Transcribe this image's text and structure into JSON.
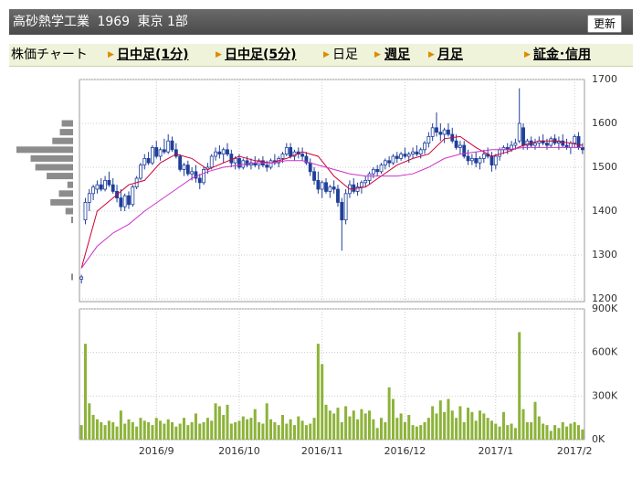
{
  "header": {
    "title": "高砂熱学工業",
    "code": "1969",
    "market": "東京 1部",
    "button": "更新"
  },
  "tabs": [
    "株価チャート",
    "日中足(1分)",
    "日中足(5分)",
    "日足",
    "週足",
    "月足",
    "証金･信用"
  ],
  "chart_data": {
    "type": "candlestick",
    "candle_color": "#1f3f99",
    "grid": true,
    "ohlc": [
      [
        1245,
        1255,
        1235,
        1250
      ],
      [
        1380,
        1430,
        1370,
        1420
      ],
      [
        1420,
        1450,
        1400,
        1440
      ],
      [
        1440,
        1460,
        1425,
        1455
      ],
      [
        1450,
        1470,
        1440,
        1460
      ],
      [
        1460,
        1475,
        1445,
        1450
      ],
      [
        1450,
        1480,
        1445,
        1470
      ],
      [
        1470,
        1490,
        1455,
        1460
      ],
      [
        1460,
        1475,
        1440,
        1445
      ],
      [
        1445,
        1460,
        1420,
        1430
      ],
      [
        1430,
        1450,
        1400,
        1410
      ],
      [
        1410,
        1440,
        1400,
        1435
      ],
      [
        1435,
        1445,
        1405,
        1415
      ],
      [
        1415,
        1460,
        1410,
        1455
      ],
      [
        1455,
        1480,
        1450,
        1475
      ],
      [
        1475,
        1510,
        1470,
        1505
      ],
      [
        1505,
        1530,
        1495,
        1520
      ],
      [
        1520,
        1535,
        1505,
        1510
      ],
      [
        1510,
        1550,
        1505,
        1545
      ],
      [
        1545,
        1560,
        1520,
        1525
      ],
      [
        1525,
        1545,
        1515,
        1540
      ],
      [
        1540,
        1565,
        1530,
        1535
      ],
      [
        1535,
        1575,
        1530,
        1560
      ],
      [
        1560,
        1570,
        1535,
        1540
      ],
      [
        1540,
        1555,
        1520,
        1525
      ],
      [
        1525,
        1530,
        1490,
        1495
      ],
      [
        1495,
        1510,
        1480,
        1505
      ],
      [
        1505,
        1515,
        1480,
        1485
      ],
      [
        1485,
        1500,
        1470,
        1490
      ],
      [
        1490,
        1505,
        1465,
        1475
      ],
      [
        1475,
        1485,
        1450,
        1465
      ],
      [
        1465,
        1500,
        1460,
        1495
      ],
      [
        1495,
        1510,
        1485,
        1500
      ],
      [
        1500,
        1530,
        1495,
        1525
      ],
      [
        1525,
        1545,
        1515,
        1535
      ],
      [
        1535,
        1550,
        1520,
        1530
      ],
      [
        1530,
        1545,
        1510,
        1540
      ],
      [
        1540,
        1555,
        1525,
        1530
      ],
      [
        1530,
        1540,
        1500,
        1510
      ],
      [
        1510,
        1525,
        1495,
        1520
      ],
      [
        1520,
        1530,
        1495,
        1500
      ],
      [
        1500,
        1520,
        1495,
        1515
      ],
      [
        1515,
        1525,
        1500,
        1505
      ],
      [
        1505,
        1520,
        1495,
        1510
      ],
      [
        1510,
        1525,
        1500,
        1505
      ],
      [
        1505,
        1520,
        1495,
        1515
      ],
      [
        1515,
        1525,
        1500,
        1505
      ],
      [
        1505,
        1515,
        1490,
        1500
      ],
      [
        1500,
        1520,
        1495,
        1515
      ],
      [
        1515,
        1530,
        1505,
        1510
      ],
      [
        1510,
        1525,
        1500,
        1520
      ],
      [
        1520,
        1535,
        1510,
        1530
      ],
      [
        1530,
        1555,
        1525,
        1545
      ],
      [
        1545,
        1555,
        1520,
        1525
      ],
      [
        1525,
        1540,
        1515,
        1535
      ],
      [
        1535,
        1545,
        1520,
        1530
      ],
      [
        1530,
        1545,
        1515,
        1525
      ],
      [
        1525,
        1535,
        1505,
        1510
      ],
      [
        1510,
        1520,
        1480,
        1490
      ],
      [
        1490,
        1500,
        1460,
        1470
      ],
      [
        1470,
        1490,
        1440,
        1450
      ],
      [
        1450,
        1470,
        1430,
        1465
      ],
      [
        1465,
        1475,
        1440,
        1445
      ],
      [
        1445,
        1460,
        1430,
        1455
      ],
      [
        1455,
        1470,
        1440,
        1450
      ],
      [
        1450,
        1460,
        1410,
        1420
      ],
      [
        1420,
        1430,
        1310,
        1380
      ],
      [
        1380,
        1450,
        1370,
        1440
      ],
      [
        1440,
        1470,
        1430,
        1460
      ],
      [
        1460,
        1475,
        1440,
        1445
      ],
      [
        1445,
        1465,
        1435,
        1455
      ],
      [
        1455,
        1470,
        1440,
        1465
      ],
      [
        1465,
        1480,
        1455,
        1470
      ],
      [
        1470,
        1490,
        1460,
        1485
      ],
      [
        1485,
        1500,
        1475,
        1495
      ],
      [
        1495,
        1505,
        1480,
        1490
      ],
      [
        1490,
        1510,
        1485,
        1505
      ],
      [
        1505,
        1520,
        1495,
        1515
      ],
      [
        1515,
        1525,
        1500,
        1510
      ],
      [
        1510,
        1530,
        1505,
        1525
      ],
      [
        1525,
        1535,
        1510,
        1520
      ],
      [
        1520,
        1535,
        1515,
        1530
      ],
      [
        1530,
        1545,
        1520,
        1525
      ],
      [
        1525,
        1535,
        1510,
        1530
      ],
      [
        1530,
        1545,
        1520,
        1535
      ],
      [
        1535,
        1550,
        1525,
        1530
      ],
      [
        1530,
        1545,
        1520,
        1540
      ],
      [
        1540,
        1560,
        1530,
        1555
      ],
      [
        1555,
        1580,
        1545,
        1570
      ],
      [
        1570,
        1600,
        1560,
        1590
      ],
      [
        1590,
        1625,
        1570,
        1580
      ],
      [
        1580,
        1600,
        1560,
        1575
      ],
      [
        1575,
        1590,
        1555,
        1585
      ],
      [
        1585,
        1600,
        1570,
        1575
      ],
      [
        1575,
        1590,
        1555,
        1560
      ],
      [
        1560,
        1575,
        1540,
        1545
      ],
      [
        1545,
        1560,
        1530,
        1550
      ],
      [
        1550,
        1560,
        1520,
        1525
      ],
      [
        1525,
        1540,
        1505,
        1515
      ],
      [
        1515,
        1530,
        1505,
        1520
      ],
      [
        1520,
        1535,
        1500,
        1510
      ],
      [
        1510,
        1525,
        1495,
        1520
      ],
      [
        1520,
        1540,
        1510,
        1530
      ],
      [
        1530,
        1545,
        1520,
        1525
      ],
      [
        1525,
        1535,
        1490,
        1505
      ],
      [
        1505,
        1530,
        1495,
        1525
      ],
      [
        1525,
        1545,
        1515,
        1540
      ],
      [
        1540,
        1550,
        1530,
        1545
      ],
      [
        1545,
        1555,
        1530,
        1540
      ],
      [
        1540,
        1560,
        1535,
        1550
      ],
      [
        1550,
        1565,
        1540,
        1555
      ],
      [
        1560,
        1680,
        1555,
        1600
      ],
      [
        1590,
        1600,
        1540,
        1550
      ],
      [
        1550,
        1565,
        1540,
        1560
      ],
      [
        1560,
        1570,
        1545,
        1550
      ],
      [
        1550,
        1565,
        1540,
        1555
      ],
      [
        1555,
        1570,
        1545,
        1560
      ],
      [
        1560,
        1575,
        1550,
        1555
      ],
      [
        1555,
        1565,
        1540,
        1550
      ],
      [
        1550,
        1570,
        1545,
        1565
      ],
      [
        1565,
        1575,
        1550,
        1555
      ],
      [
        1555,
        1570,
        1540,
        1560
      ],
      [
        1560,
        1575,
        1545,
        1550
      ],
      [
        1550,
        1565,
        1540,
        1545
      ],
      [
        1545,
        1560,
        1530,
        1555
      ],
      [
        1555,
        1575,
        1545,
        1570
      ],
      [
        1570,
        1580,
        1540,
        1545
      ],
      [
        1545,
        1555,
        1530,
        1540
      ]
    ],
    "ma": [
      {
        "color": "#cc0033",
        "x": [
          0,
          4,
          8,
          12,
          16,
          20,
          24,
          28,
          32,
          36,
          40,
          44,
          48,
          52,
          56,
          60,
          64,
          68,
          72,
          76,
          80,
          84,
          88,
          92,
          96,
          100,
          104,
          108,
          112,
          116,
          120,
          124,
          127
        ],
        "values": [
          1270,
          1400,
          1430,
          1460,
          1470,
          1510,
          1530,
          1520,
          1495,
          1510,
          1525,
          1515,
          1510,
          1520,
          1535,
          1525,
          1480,
          1450,
          1455,
          1480,
          1505,
          1520,
          1530,
          1565,
          1570,
          1545,
          1525,
          1535,
          1550,
          1560,
          1560,
          1555,
          1550
        ]
      },
      {
        "color": "#cc33cc",
        "x": [
          0,
          4,
          8,
          12,
          16,
          20,
          24,
          28,
          32,
          36,
          40,
          44,
          48,
          52,
          56,
          60,
          64,
          68,
          72,
          76,
          80,
          84,
          88,
          92,
          96,
          100,
          104,
          108,
          112,
          116,
          120,
          124,
          127
        ],
        "values": [
          1270,
          1320,
          1350,
          1370,
          1400,
          1425,
          1450,
          1475,
          1490,
          1500,
          1505,
          1510,
          1510,
          1515,
          1515,
          1505,
          1495,
          1485,
          1480,
          1480,
          1480,
          1485,
          1500,
          1520,
          1530,
          1535,
          1540,
          1540,
          1545,
          1545,
          1545,
          1545,
          1545
        ]
      }
    ],
    "xlim": [
      -0.5,
      127.5
    ],
    "xticks": [
      {
        "value": 19,
        "label": "2016/9"
      },
      {
        "value": 40,
        "label": "2016/10"
      },
      {
        "value": 61,
        "label": "2016/11"
      },
      {
        "value": 82,
        "label": "2016/12"
      },
      {
        "value": 105,
        "label": "2017/1"
      },
      {
        "value": 125,
        "label": "2017/2"
      }
    ],
    "ylim": [
      1200,
      1700
    ],
    "yticks": [
      1200,
      1300,
      1400,
      1500,
      1600,
      1700
    ],
    "volume": {
      "color": "#8db33a",
      "ylim": [
        0,
        900000
      ],
      "yticks": [
        {
          "value": 0,
          "label": "0K"
        },
        {
          "value": 300000,
          "label": "300K"
        },
        {
          "value": 600000,
          "label": "600K"
        },
        {
          "value": 900000,
          "label": "900K"
        }
      ],
      "values": [
        100000,
        660000,
        250000,
        170000,
        140000,
        120000,
        100000,
        130000,
        120000,
        90000,
        200000,
        110000,
        140000,
        120000,
        90000,
        150000,
        130000,
        120000,
        100000,
        150000,
        130000,
        110000,
        140000,
        120000,
        90000,
        110000,
        150000,
        100000,
        120000,
        180000,
        110000,
        120000,
        150000,
        130000,
        250000,
        230000,
        170000,
        240000,
        110000,
        120000,
        130000,
        160000,
        140000,
        150000,
        210000,
        120000,
        110000,
        250000,
        140000,
        120000,
        100000,
        170000,
        110000,
        140000,
        100000,
        160000,
        130000,
        100000,
        110000,
        150000,
        660000,
        520000,
        240000,
        200000,
        180000,
        220000,
        120000,
        230000,
        160000,
        200000,
        140000,
        210000,
        180000,
        200000,
        140000,
        80000,
        150000,
        120000,
        360000,
        280000,
        150000,
        180000,
        120000,
        170000,
        100000,
        90000,
        100000,
        120000,
        150000,
        230000,
        180000,
        270000,
        190000,
        280000,
        200000,
        150000,
        230000,
        120000,
        220000,
        190000,
        130000,
        200000,
        180000,
        150000,
        130000,
        110000,
        90000,
        190000,
        100000,
        110000,
        80000,
        740000,
        210000,
        120000,
        120000,
        260000,
        160000,
        110000,
        100000,
        60000,
        100000,
        80000,
        120000,
        90000,
        110000,
        120000,
        100000,
        70000
      ]
    },
    "price_volume": {
      "color": "#8c8c8c",
      "levels": [
        1600,
        1580,
        1560,
        1540,
        1520,
        1500,
        1480,
        1460,
        1440,
        1420,
        1400,
        1380,
        1250
      ],
      "values": [
        12,
        14,
        22,
        60,
        45,
        40,
        28,
        6,
        15,
        24,
        8,
        2,
        2
      ]
    }
  }
}
